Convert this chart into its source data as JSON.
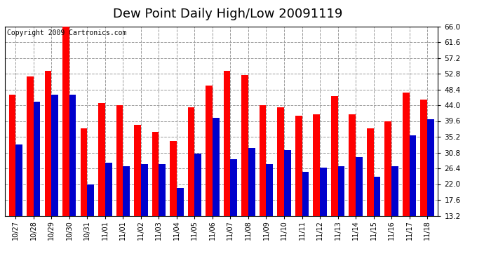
{
  "title": "Dew Point Daily High/Low 20091119",
  "copyright": "Copyright 2009 Cartronics.com",
  "categories": [
    "10/27",
    "10/28",
    "10/29",
    "10/30",
    "10/31",
    "11/01",
    "11/01",
    "11/02",
    "11/03",
    "11/04",
    "11/05",
    "11/06",
    "11/07",
    "11/08",
    "11/09",
    "11/10",
    "11/11",
    "11/12",
    "11/13",
    "11/14",
    "11/15",
    "11/16",
    "11/17",
    "11/18"
  ],
  "highs": [
    47.0,
    52.0,
    53.5,
    66.0,
    37.5,
    44.5,
    44.0,
    38.5,
    36.5,
    34.0,
    43.5,
    49.5,
    53.5,
    52.5,
    44.0,
    43.5,
    41.0,
    41.5,
    46.5,
    41.5,
    37.5,
    39.5,
    47.5,
    45.5
  ],
  "lows": [
    33.0,
    45.0,
    47.0,
    47.0,
    22.0,
    28.0,
    27.0,
    27.5,
    27.5,
    21.0,
    30.5,
    40.5,
    29.0,
    32.0,
    27.5,
    31.5,
    25.5,
    26.5,
    27.0,
    29.5,
    24.0,
    27.0,
    35.5,
    40.0
  ],
  "high_color": "#ff0000",
  "low_color": "#0000cc",
  "bg_color": "#ffffff",
  "grid_color": "#999999",
  "ymin": 13.2,
  "ymax": 66.0,
  "yticks": [
    13.2,
    17.6,
    22.0,
    26.4,
    30.8,
    35.2,
    39.6,
    44.0,
    48.4,
    52.8,
    57.2,
    61.6,
    66.0
  ],
  "title_fontsize": 13,
  "copyright_fontsize": 7,
  "bar_width": 0.38
}
